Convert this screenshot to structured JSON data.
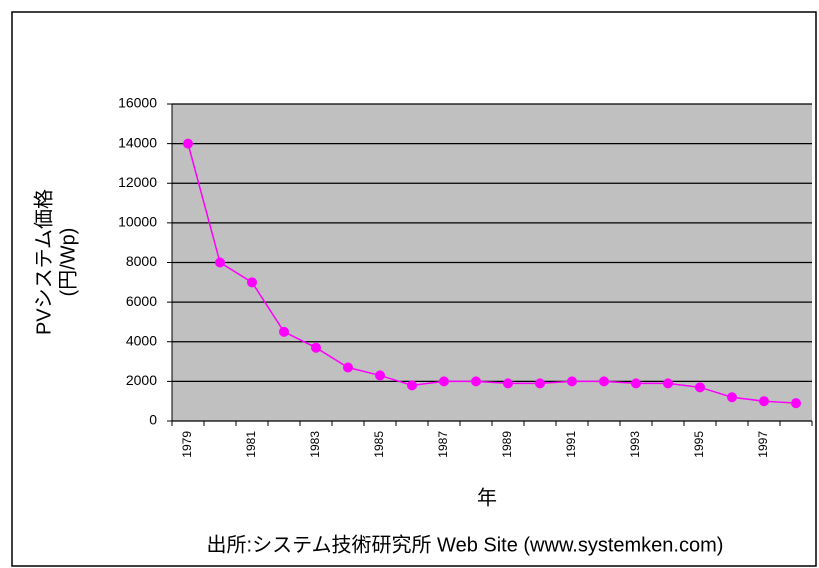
{
  "chart_data": {
    "type": "line",
    "ylabel": [
      "PVシステム価格",
      "(円/Wp)"
    ],
    "xlabel": "年",
    "source": "出所:システム技術研究所 Web Site (www.systemken.com)",
    "categories": [
      "1979",
      null,
      "1981",
      null,
      "1983",
      null,
      "1985",
      null,
      "1987",
      null,
      "1989",
      null,
      "1991",
      null,
      "1993",
      null,
      "1995",
      null,
      "1997",
      null
    ],
    "series": [
      {
        "name": null,
        "color": "#ff00ff",
        "values": [
          14000,
          8000,
          7000,
          4500,
          3700,
          2700,
          2300,
          1800,
          2000,
          2000,
          1900,
          1900,
          2000,
          2000,
          1900,
          1900,
          1700,
          1200,
          1000,
          900
        ]
      }
    ],
    "ylim": [
      0,
      16000
    ],
    "yticks": [
      0,
      2000,
      4000,
      6000,
      8000,
      10000,
      12000,
      14000,
      16000
    ],
    "grid": true,
    "plot_background": "#c0c0c0"
  }
}
